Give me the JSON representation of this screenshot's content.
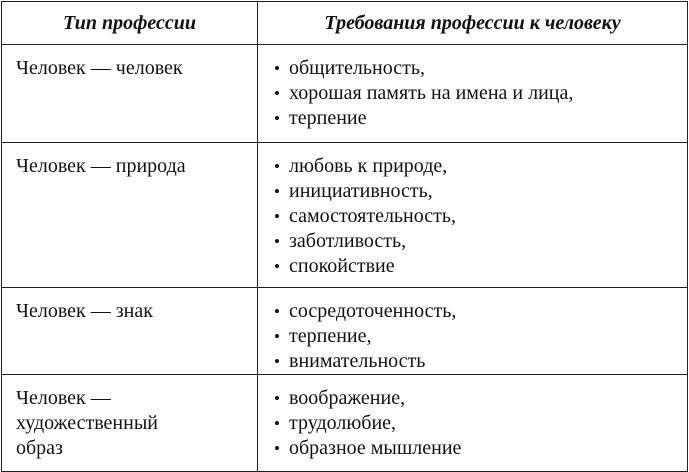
{
  "header": {
    "col1": "Тип профессии",
    "col2": "Требования профессии к человеку"
  },
  "rows": [
    {
      "type": "Человек — человек",
      "items": [
        "общительность,",
        "хорошая память на имена и лица,",
        "терпение"
      ]
    },
    {
      "type": "Человек — природа",
      "items": [
        "любовь к природе,",
        "инициативность,",
        "самостоятельность,",
        "заботливость,",
        "спокойствие"
      ]
    },
    {
      "type": "Человек — знак",
      "items": [
        "сосредоточенность,",
        "терпение,",
        "внимательность"
      ]
    },
    {
      "type": "Человек — художественный образ",
      "items": [
        "воображение,",
        "трудолюбие,",
        "образное мышление"
      ]
    }
  ]
}
